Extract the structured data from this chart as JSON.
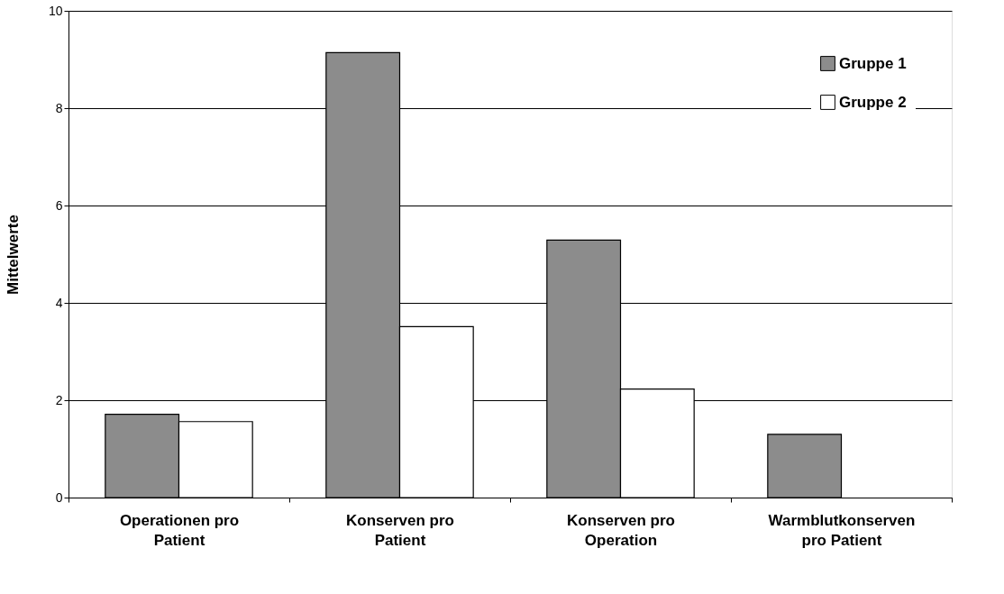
{
  "chart_data": {
    "type": "bar",
    "ylabel": "Mittelwerte",
    "categories": [
      "Operationen pro\nPatient",
      "Konserven pro\nPatient",
      "Konserven pro\nOperation",
      "Warmblutkonserven\npro Patient"
    ],
    "series": [
      {
        "name": "Gruppe 1",
        "color": "#8c8c8c",
        "values": [
          1.71,
          9.14,
          5.29,
          1.3
        ]
      },
      {
        "name": "Gruppe 2",
        "color": "#ffffff",
        "values": [
          1.56,
          3.51,
          2.23,
          null
        ]
      }
    ],
    "ylim": [
      0,
      10
    ],
    "yticks": [
      0,
      2,
      4,
      6,
      8,
      10
    ],
    "grid": "y",
    "legend": "top right"
  }
}
